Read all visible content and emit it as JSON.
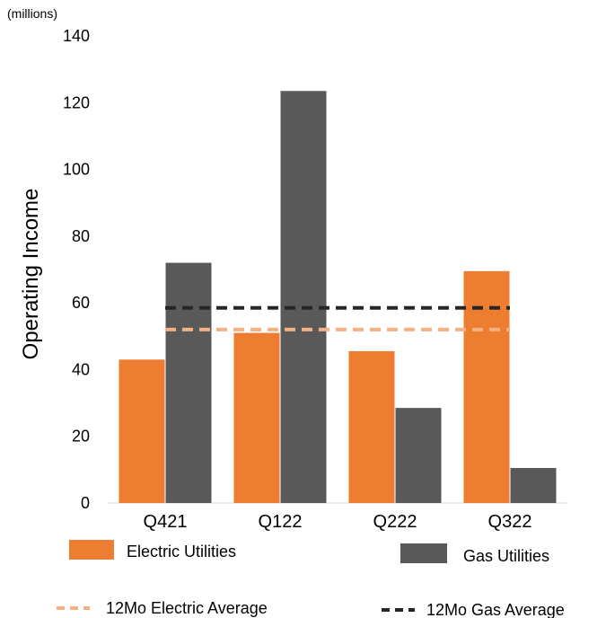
{
  "chart_data": {
    "type": "bar",
    "unit_label": "(millions)",
    "ylabel": "Operating Income",
    "categories": [
      "Q421",
      "Q122",
      "Q222",
      "Q322"
    ],
    "ylim": [
      0,
      140
    ],
    "yticks": [
      0,
      20,
      40,
      60,
      80,
      100,
      120,
      140
    ],
    "series": [
      {
        "name": "Electric Utilities",
        "color": "#ED7D31",
        "values": [
          43,
          51,
          45.5,
          69.5
        ]
      },
      {
        "name": "Gas Utilities",
        "color": "#595959",
        "values": [
          72,
          123.5,
          28.5,
          10.5
        ]
      }
    ],
    "reference_lines": [
      {
        "name": "12Mo Electric Average",
        "value": 52,
        "color": "#F4B183",
        "style": "dashed"
      },
      {
        "name": "12Mo Gas Average",
        "value": 58.5,
        "color": "#262626",
        "style": "dashed"
      }
    ],
    "legend_position": "bottom",
    "grid": false
  }
}
